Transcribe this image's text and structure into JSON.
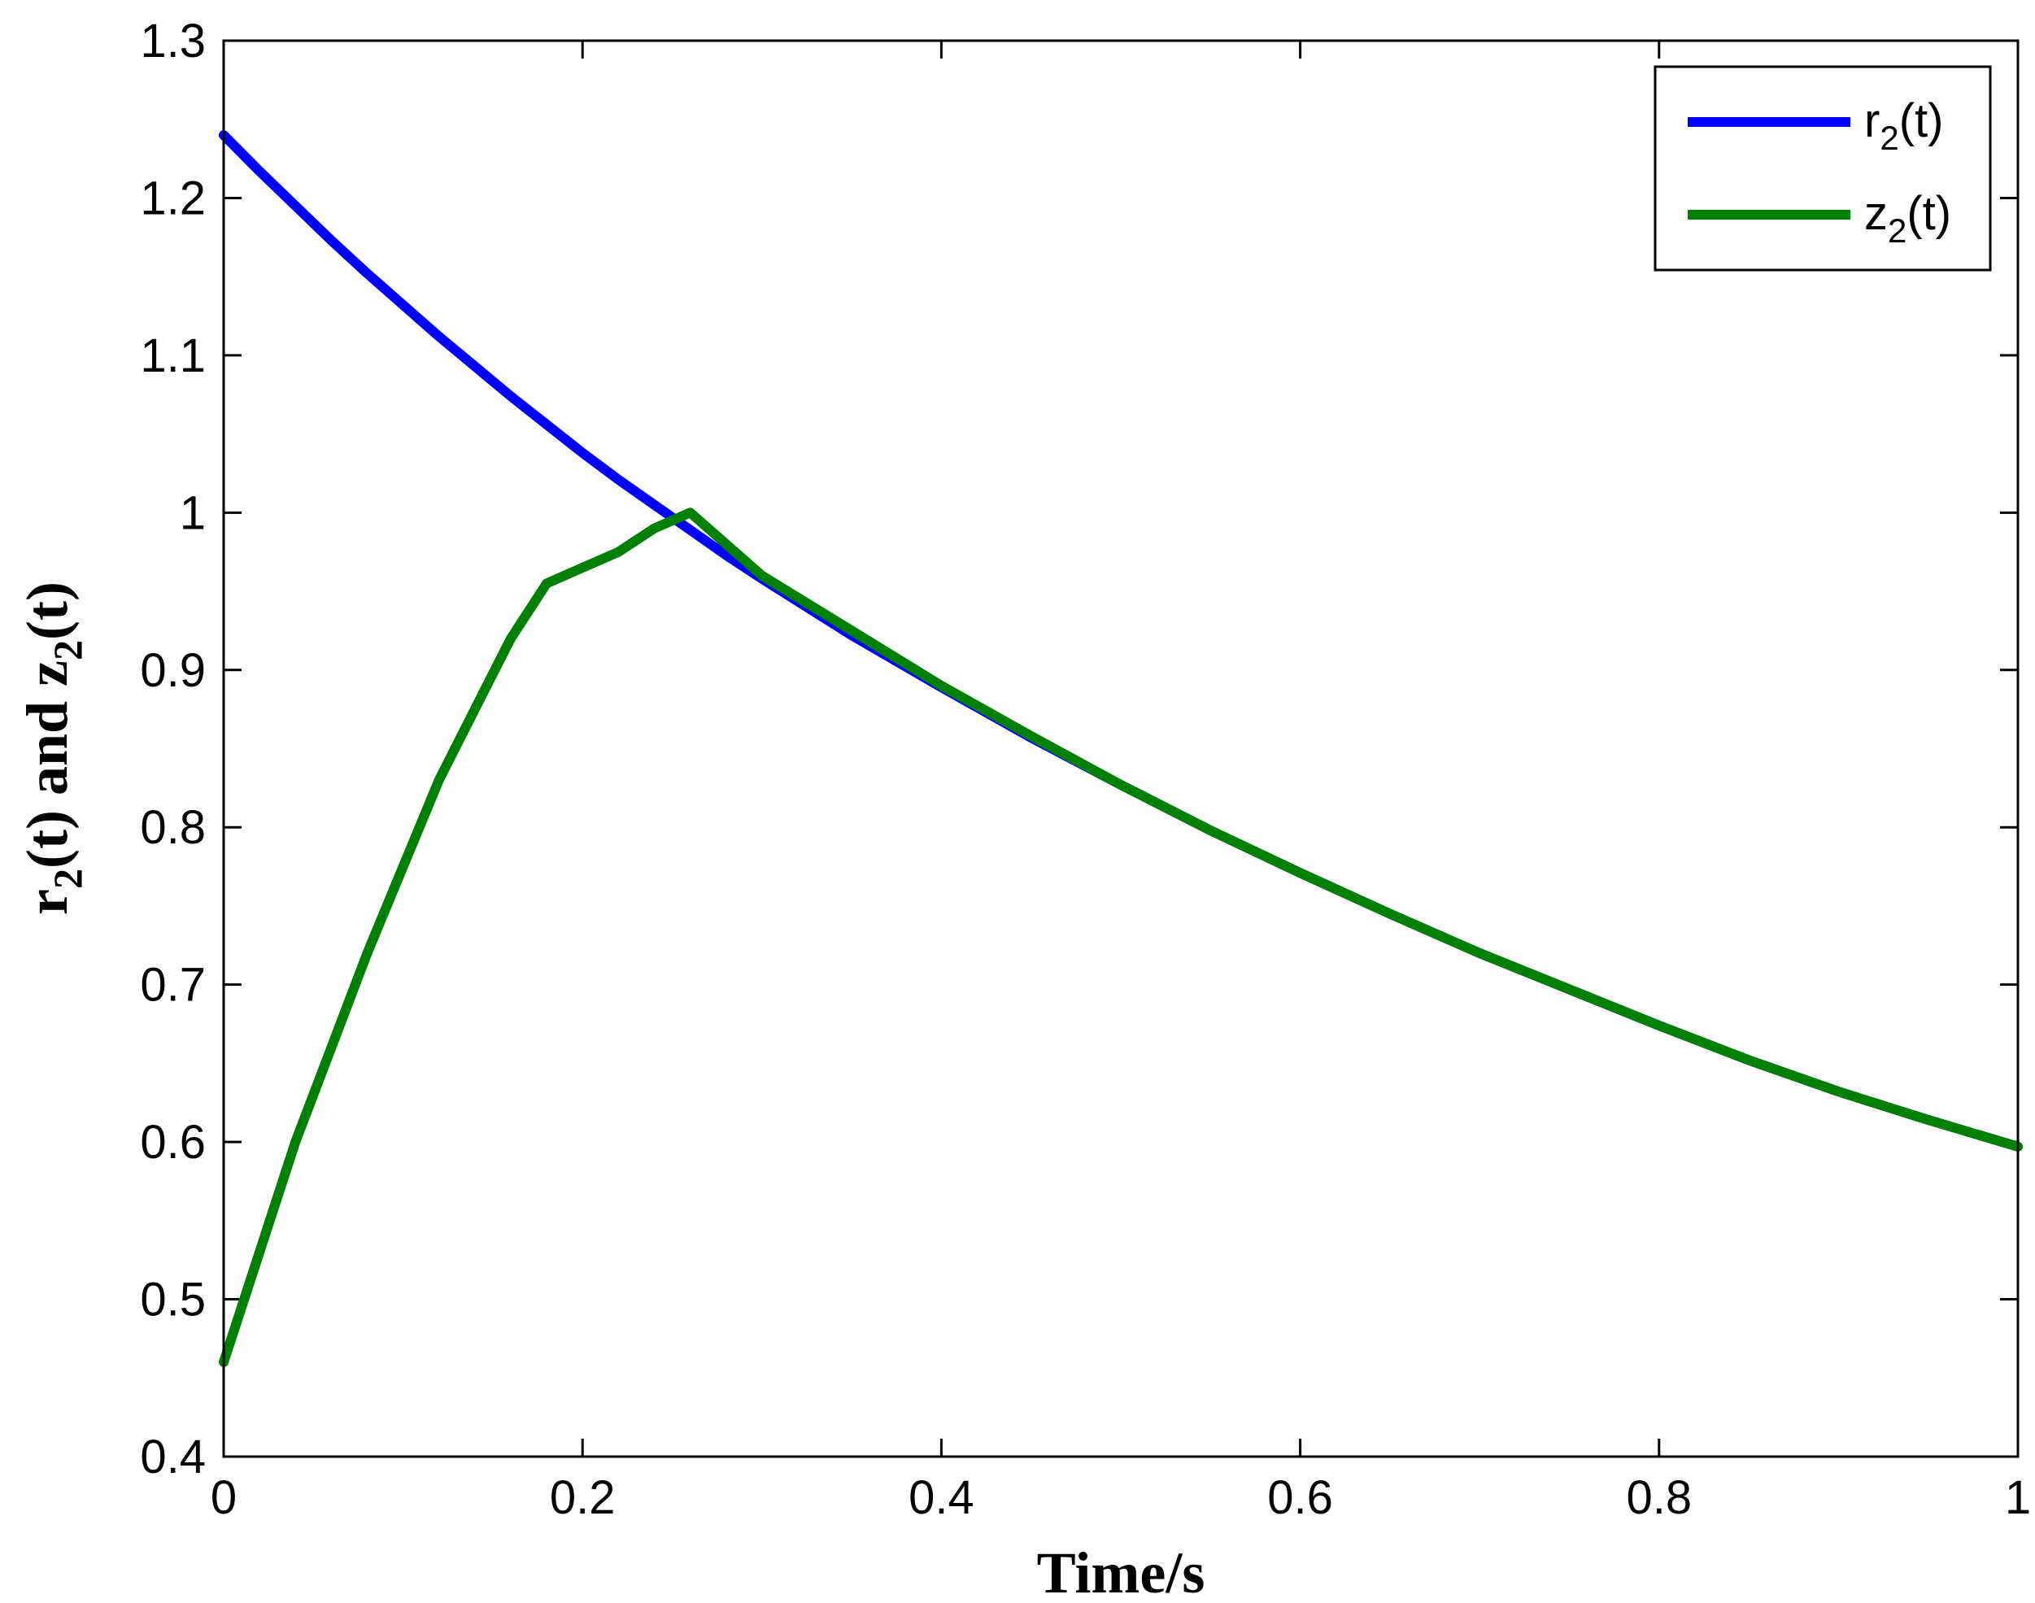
{
  "chart_data": {
    "type": "line",
    "title": "",
    "xlabel": "Time/s",
    "ylabel": {
      "pre": "r",
      "sub1": "2",
      "mid": "(t) and z",
      "sub2": "2",
      "post": "(t)"
    },
    "xlim": [
      0,
      1
    ],
    "ylim": [
      0.4,
      1.3
    ],
    "grid": false,
    "legend_position": "top-right",
    "x_ticks": [
      "0",
      "0.2",
      "0.4",
      "0.6",
      "0.8",
      "1"
    ],
    "x_tick_values": [
      0,
      0.2,
      0.4,
      0.6,
      0.8,
      1
    ],
    "y_ticks": [
      "0.4",
      "0.5",
      "0.6",
      "0.7",
      "0.8",
      "0.9",
      "1",
      "1.1",
      "1.2",
      "1.3"
    ],
    "y_tick_values": [
      0.4,
      0.5,
      0.6,
      0.7,
      0.8,
      0.9,
      1.0,
      1.1,
      1.2,
      1.3
    ],
    "series": [
      {
        "name": {
          "pre": "r",
          "sub": "2",
          "post": "(t)"
        },
        "color": "#0000ff",
        "x": [
          0,
          0.02,
          0.04,
          0.06,
          0.08,
          0.1,
          0.12,
          0.14,
          0.16,
          0.18,
          0.2,
          0.22,
          0.24,
          0.26,
          0.28,
          0.3,
          0.35,
          0.4,
          0.45,
          0.5,
          0.55,
          0.6,
          0.65,
          0.7,
          0.75,
          0.8,
          0.85,
          0.9,
          0.95,
          1.0
        ],
        "y": [
          1.24,
          1.217,
          1.195,
          1.173,
          1.152,
          1.132,
          1.112,
          1.093,
          1.074,
          1.056,
          1.038,
          1.021,
          1.005,
          0.989,
          0.973,
          0.958,
          0.922,
          0.889,
          0.857,
          0.827,
          0.798,
          0.771,
          0.745,
          0.72,
          0.697,
          0.674,
          0.652,
          0.632,
          0.614,
          0.597
        ]
      },
      {
        "name": {
          "pre": "z",
          "sub": "2",
          "post": "(t)"
        },
        "color": "#008000",
        "x": [
          0,
          0.02,
          0.04,
          0.06,
          0.08,
          0.1,
          0.12,
          0.14,
          0.16,
          0.18,
          0.2,
          0.22,
          0.24,
          0.26,
          0.28,
          0.3,
          0.35,
          0.4,
          0.45,
          0.5,
          0.55,
          0.6,
          0.65,
          0.7,
          0.75,
          0.8,
          0.85,
          0.9,
          0.95,
          1.0
        ],
        "y": [
          0.46,
          0.53,
          0.6,
          0.66,
          0.72,
          0.775,
          0.83,
          0.875,
          0.92,
          0.955,
          0.965,
          0.975,
          0.99,
          1.0,
          0.98,
          0.96,
          0.925,
          0.89,
          0.858,
          0.827,
          0.798,
          0.771,
          0.745,
          0.72,
          0.697,
          0.674,
          0.652,
          0.632,
          0.614,
          0.597
        ]
      }
    ]
  }
}
